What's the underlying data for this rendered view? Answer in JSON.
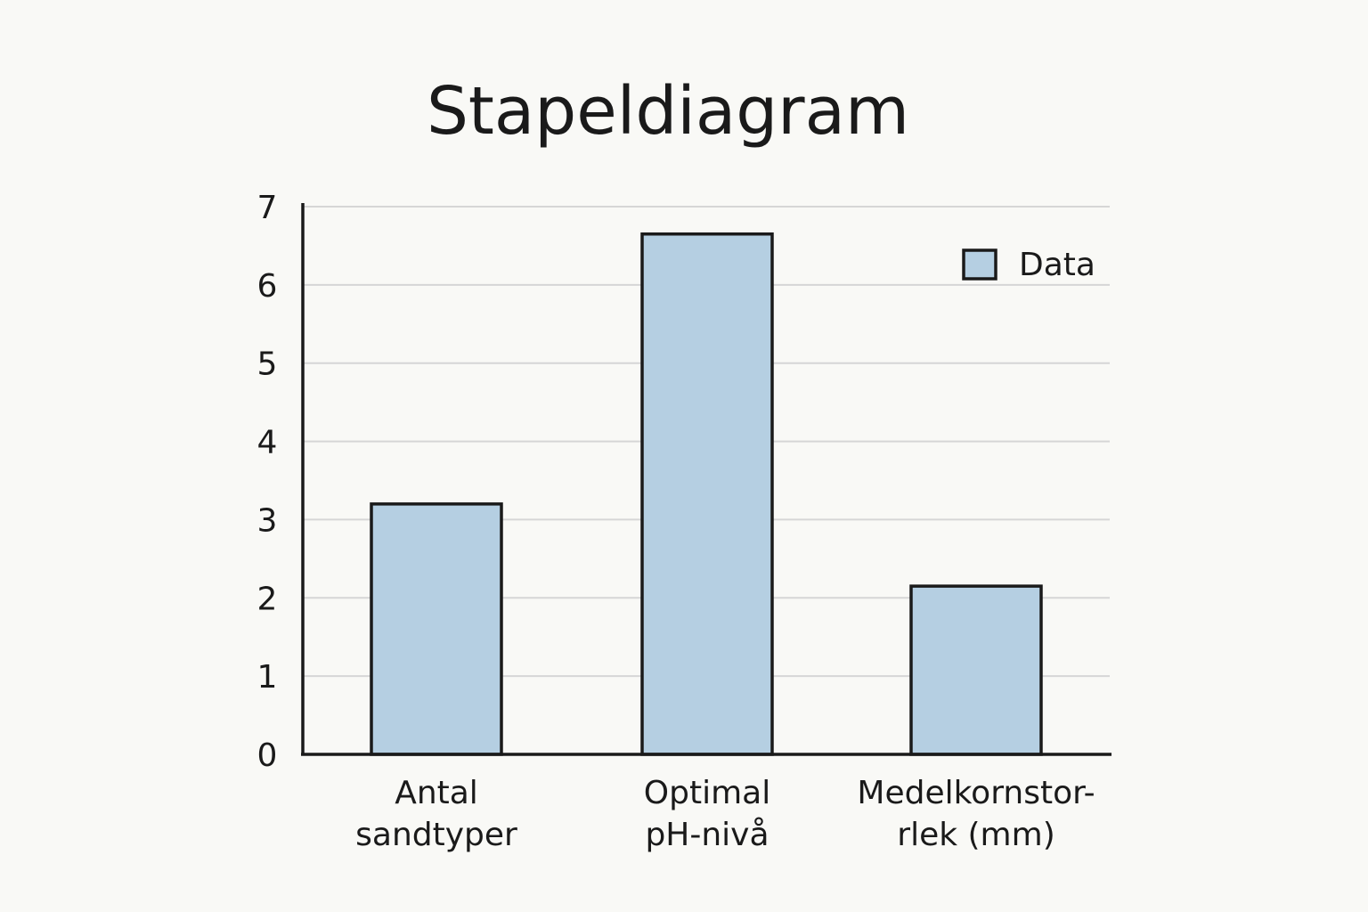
{
  "chart_data": {
    "type": "bar",
    "title": "Stapeldiagram",
    "categories": [
      [
        "Antal",
        "sandtyper"
      ],
      [
        "Optimal",
        "pH-nivå"
      ],
      [
        "Medelkornstor-",
        "rlek (mm)"
      ]
    ],
    "series": [
      {
        "name": "Data",
        "values": [
          3.2,
          6.65,
          2.15
        ]
      }
    ],
    "ylim": [
      0,
      7
    ],
    "yticks": [
      0,
      1,
      2,
      3,
      4,
      5,
      6,
      7
    ],
    "xlabel": "",
    "ylabel": "",
    "grid": true,
    "legend_position": "top-right",
    "colors": {
      "bar_fill": "#b5cfe2",
      "bar_stroke": "#1a1a1a",
      "grid": "#d6d6d6",
      "axis": "#1a1a1a",
      "background": "#f9f9f6"
    }
  }
}
